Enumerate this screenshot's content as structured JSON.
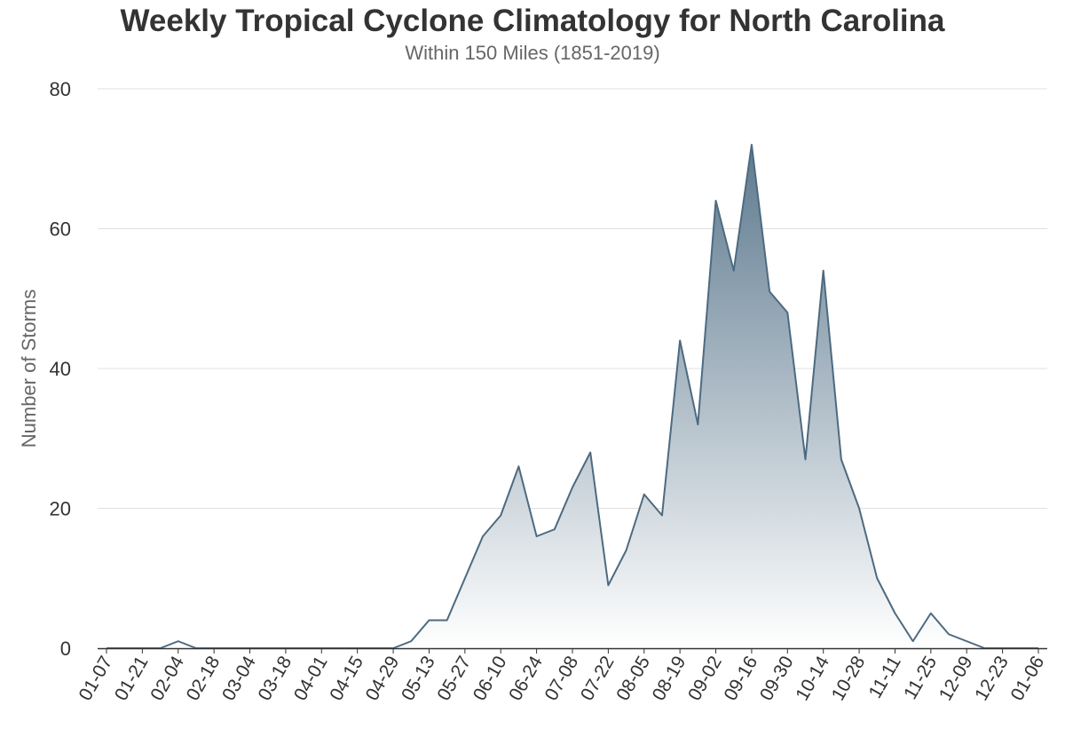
{
  "chart_data": {
    "type": "area",
    "title": "Weekly Tropical Cyclone Climatology for North Carolina",
    "subtitle": "Within 150 Miles (1851-2019)",
    "xlabel": "",
    "ylabel": "Number of Storms",
    "ylim": [
      0,
      80
    ],
    "yticks": [
      0,
      20,
      40,
      60,
      80
    ],
    "grid": true,
    "legend": "none",
    "x_tick_labels": [
      "01-07",
      "01-21",
      "02-04",
      "02-18",
      "03-04",
      "03-18",
      "04-01",
      "04-15",
      "04-29",
      "05-13",
      "05-27",
      "06-10",
      "06-24",
      "07-08",
      "07-22",
      "08-05",
      "08-19",
      "09-02",
      "09-16",
      "09-30",
      "10-14",
      "10-28",
      "11-11",
      "11-25",
      "12-09",
      "12-23",
      "01-06"
    ],
    "x": [
      "01-07",
      "01-14",
      "01-21",
      "01-28",
      "02-04",
      "02-11",
      "02-18",
      "02-25",
      "03-04",
      "03-11",
      "03-18",
      "03-25",
      "04-01",
      "04-08",
      "04-15",
      "04-22",
      "04-29",
      "05-06",
      "05-13",
      "05-20",
      "05-27",
      "06-03",
      "06-10",
      "06-17",
      "06-24",
      "07-01",
      "07-08",
      "07-15",
      "07-22",
      "07-29",
      "08-05",
      "08-12",
      "08-19",
      "08-26",
      "09-02",
      "09-09",
      "09-16",
      "09-23",
      "09-30",
      "10-07",
      "10-14",
      "10-21",
      "10-28",
      "11-04",
      "11-11",
      "11-18",
      "11-25",
      "12-02",
      "12-09",
      "12-16",
      "12-23",
      "12-30",
      "01-06"
    ],
    "values": [
      0,
      0,
      0,
      0,
      1,
      0,
      0,
      0,
      0,
      0,
      0,
      0,
      0,
      0,
      0,
      0,
      0,
      1,
      4,
      4,
      10,
      16,
      19,
      26,
      16,
      17,
      23,
      28,
      9,
      14,
      22,
      19,
      44,
      32,
      64,
      54,
      72,
      51,
      48,
      27,
      54,
      27,
      20,
      10,
      5,
      1,
      5,
      2,
      1,
      0,
      0,
      0,
      0
    ],
    "colors": {
      "line": "#4d6a80",
      "fill_top": "#5e7a8f",
      "fill_bottom": "#ffffff",
      "grid": "#e0e0e0",
      "axis": "#333333"
    }
  }
}
